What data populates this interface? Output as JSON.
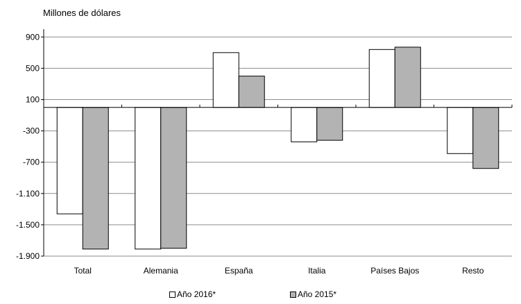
{
  "chart_data": {
    "type": "bar",
    "ylabel": "Millones de dólares",
    "categories": [
      "Total",
      "Alemania",
      "España",
      "Italia",
      "Países Bajos",
      "Resto"
    ],
    "series": [
      {
        "name": "Año 2016*",
        "values": [
          -1360,
          -1810,
          700,
          -440,
          740,
          -590
        ],
        "color": "#ffffff"
      },
      {
        "name": "Año 2015*",
        "values": [
          -1810,
          -1800,
          400,
          -420,
          770,
          -780
        ],
        "color": "#b3b3b3"
      }
    ],
    "ylim": [
      -1900,
      1000
    ],
    "yticks": [
      900,
      500,
      100,
      -300,
      -700,
      -1100,
      -1500,
      -1900
    ],
    "ytick_labels": [
      "900",
      "500",
      "100",
      "-300",
      "-700",
      "-1.100",
      "-1.500",
      "-1.900"
    ],
    "grid": true,
    "legend_position": "bottom"
  }
}
